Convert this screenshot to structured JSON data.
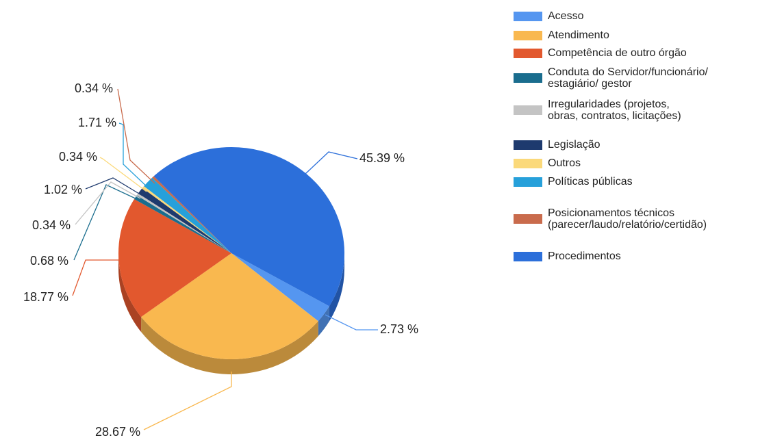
{
  "chart_data": {
    "type": "pie",
    "categories": [
      "Acesso",
      "Atendimento",
      "Competência de outro órgão",
      "Conduta do Servidor/funcionário/\nestagiário/ gestor",
      "Irregularidades (projetos,\nobras, contratos, licitações)",
      "Legislação",
      "Outros",
      "Políticas públicas",
      "Posicionamentos técnicos\n(parecer/laudo/relatório/certidão)",
      "Procedimentos"
    ],
    "values": [
      2.73,
      28.67,
      18.77,
      0.68,
      0.34,
      1.02,
      0.34,
      1.71,
      0.34,
      45.39
    ],
    "value_labels": [
      "2.73 %",
      "28.67 %",
      "18.77 %",
      "0.68 %",
      "0.34 %",
      "1.02 %",
      "0.34 %",
      "1.71 %",
      "0.34 %",
      "45.39 %"
    ],
    "colors": [
      "#5596f0",
      "#f9b84f",
      "#e2582e",
      "#1a6d8e",
      "#c4c4c4",
      "#1e3a6e",
      "#fbd97a",
      "#26a0da",
      "#c96b4c",
      "#2c6fda"
    ]
  }
}
